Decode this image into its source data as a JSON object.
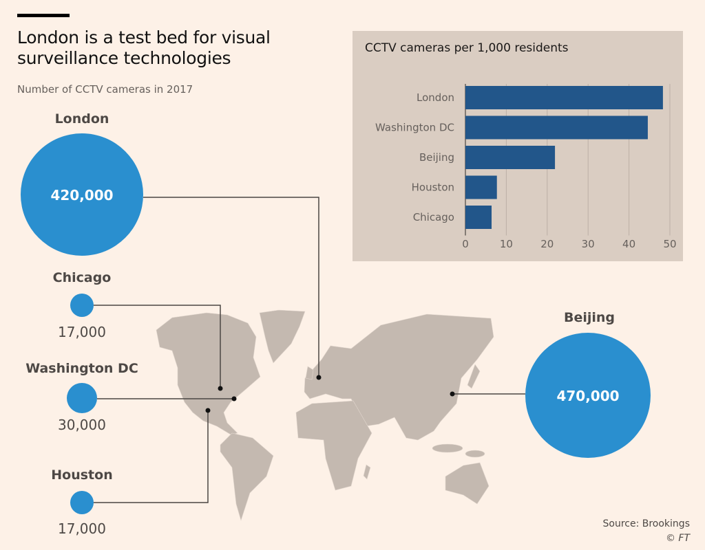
{
  "title": "London is a test bed for visual surveillance technologies",
  "subtitle": "Number of CCTV cameras in 2017",
  "bubbles": [
    {
      "city": "London",
      "value": 420000,
      "label": "420,000"
    },
    {
      "city": "Chicago",
      "value": 17000,
      "label": "17,000"
    },
    {
      "city": "Washington DC",
      "value": 30000,
      "label": "30,000"
    },
    {
      "city": "Houston",
      "value": 17000,
      "label": "17,000"
    },
    {
      "city": "Beijing",
      "value": 470000,
      "label": "470,000"
    }
  ],
  "colors": {
    "bubble": "#2a8fcf",
    "bar": "#22568a",
    "panel": "#dacdc2",
    "background": "#fdf1e7",
    "land": "#c4b9b0"
  },
  "chart_data": {
    "type": "bar",
    "orientation": "horizontal",
    "title": "CCTV cameras per 1,000 residents",
    "categories": [
      "London",
      "Washington DC",
      "Beijing",
      "Houston",
      "Chicago"
    ],
    "values": [
      48.3,
      44.6,
      21.9,
      7.7,
      6.4
    ],
    "xlim": [
      0,
      50
    ],
    "xticks": [
      "0",
      "10",
      "20",
      "30",
      "40",
      "50"
    ],
    "xlabel": "",
    "ylabel": "",
    "grid": true
  },
  "source": "Source: Brookings",
  "credit": "© FT"
}
